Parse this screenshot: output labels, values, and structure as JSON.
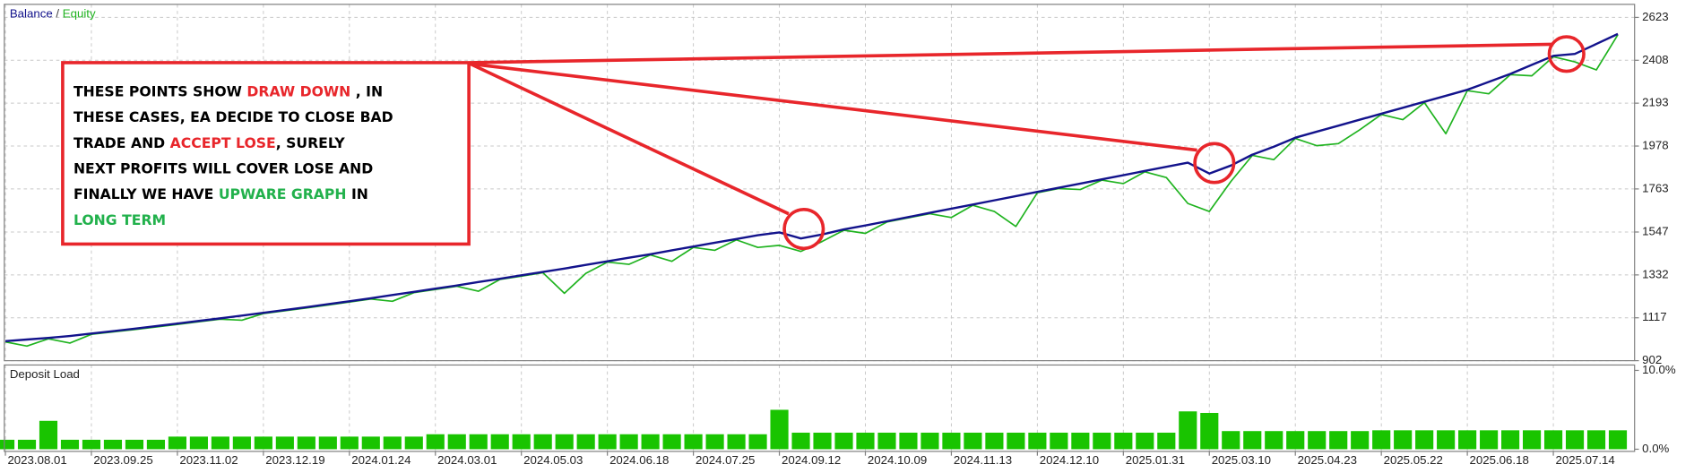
{
  "chart_data": [
    {
      "type": "line",
      "legend_separator": "/",
      "categories": [
        "2023.08.01",
        null,
        null,
        null,
        "2023.09.25",
        null,
        null,
        null,
        "2023.11.02",
        null,
        null,
        null,
        "2023.12.19",
        null,
        null,
        null,
        "2024.01.24",
        null,
        null,
        null,
        "2024.03.01",
        null,
        null,
        null,
        "2024.05.03",
        null,
        null,
        null,
        "2024.06.18",
        null,
        null,
        null,
        "2024.07.25",
        null,
        null,
        null,
        "2024.09.12",
        null,
        null,
        null,
        "2024.10.09",
        null,
        null,
        null,
        "2024.11.13",
        null,
        null,
        null,
        "2024.12.10",
        null,
        null,
        null,
        "2025.01.31",
        null,
        null,
        null,
        "2025.03.10",
        null,
        null,
        null,
        "2025.04.23",
        null,
        null,
        null,
        "2025.05.22",
        null,
        null,
        null,
        "2025.06.18",
        null,
        null,
        null,
        "2025.07.14",
        null,
        null,
        null
      ],
      "series": [
        {
          "name": "Balance",
          "color": "#13138c",
          "values": [
            1000,
            1008,
            1016,
            1026,
            1038,
            1050,
            1062,
            1075,
            1088,
            1101,
            1114,
            1128,
            1142,
            1156,
            1170,
            1185,
            1200,
            1215,
            1231,
            1247,
            1263,
            1279,
            1296,
            1313,
            1330,
            1347,
            1364,
            1382,
            1400,
            1418,
            1436,
            1455,
            1474,
            1493,
            1512,
            1531,
            1545,
            1515,
            1535,
            1560,
            1580,
            1601,
            1622,
            1643,
            1664,
            1685,
            1706,
            1727,
            1748,
            1769,
            1790,
            1811,
            1832,
            1853,
            1874,
            1895,
            1840,
            1880,
            1935,
            1975,
            2020,
            2050,
            2080,
            2110,
            2140,
            2170,
            2200,
            2230,
            2260,
            2300,
            2340,
            2385,
            2430,
            2440,
            2490,
            2540
          ]
        },
        {
          "name": "Equity",
          "color": "#1fb31f",
          "values": [
            996,
            975,
            1012,
            990,
            1034,
            1046,
            1058,
            1071,
            1084,
            1097,
            1110,
            1105,
            1138,
            1152,
            1166,
            1181,
            1196,
            1211,
            1200,
            1243,
            1259,
            1275,
            1250,
            1309,
            1326,
            1343,
            1240,
            1340,
            1396,
            1385,
            1432,
            1400,
            1470,
            1455,
            1508,
            1470,
            1480,
            1450,
            1500,
            1556,
            1540,
            1597,
            1618,
            1639,
            1620,
            1681,
            1650,
            1575,
            1744,
            1765,
            1760,
            1807,
            1790,
            1849,
            1820,
            1690,
            1650,
            1800,
            1931,
            1910,
            2016,
            1980,
            1990,
            2060,
            2136,
            2110,
            2196,
            2040,
            2256,
            2240,
            2336,
            2330,
            2426,
            2400,
            2360,
            2536
          ]
        }
      ],
      "ylim": [
        902,
        2683
      ],
      "yticks": [
        902,
        1117,
        1332,
        1547,
        1763,
        1978,
        2193,
        2408,
        2623
      ],
      "grid": true,
      "annotation": {
        "lines": [
          [
            {
              "text": "THESE POINTS SHOW ",
              "color": "#000000"
            },
            {
              "text": "DRAW DOWN",
              "color": "#e8262b"
            },
            {
              "text": " , IN",
              "color": "#000000"
            }
          ],
          [
            {
              "text": "THESE CASES, EA DECIDE TO CLOSE BAD",
              "color": "#000000"
            }
          ],
          [
            {
              "text": "TRADE AND ",
              "color": "#000000"
            },
            {
              "text": "ACCEPT LOSE",
              "color": "#e8262b"
            },
            {
              "text": ", SURELY",
              "color": "#000000"
            }
          ],
          [
            {
              "text": "NEXT PROFITS WILL COVER LOSE AND",
              "color": "#000000"
            }
          ],
          [
            {
              "text": "FINALLY WE HAVE ",
              "color": "#000000"
            },
            {
              "text": "UPWARE GRAPH",
              "color": "#22b14c"
            },
            {
              "text": " IN",
              "color": "#000000"
            }
          ],
          [
            {
              "text": "LONG TERM",
              "color": "#22b14c"
            }
          ]
        ]
      }
    },
    {
      "type": "bar",
      "title": "Deposit Load",
      "color": "#19c400",
      "values": [
        1.2,
        1.2,
        3.6,
        1.2,
        1.2,
        1.2,
        1.2,
        1.2,
        1.6,
        1.6,
        1.6,
        1.6,
        1.6,
        1.6,
        1.6,
        1.6,
        1.6,
        1.6,
        1.6,
        1.6,
        1.9,
        1.9,
        1.9,
        1.9,
        1.9,
        1.9,
        1.9,
        1.9,
        1.9,
        1.9,
        1.9,
        1.9,
        1.9,
        1.9,
        1.9,
        1.9,
        5.0,
        2.1,
        2.1,
        2.1,
        2.1,
        2.1,
        2.1,
        2.1,
        2.1,
        2.1,
        2.1,
        2.1,
        2.1,
        2.1,
        2.1,
        2.1,
        2.1,
        2.1,
        2.1,
        4.8,
        4.6,
        2.3,
        2.3,
        2.3,
        2.3,
        2.3,
        2.3,
        2.3,
        2.4,
        2.4,
        2.4,
        2.4,
        2.4,
        2.4,
        2.4,
        2.4,
        2.4,
        2.4,
        2.4,
        2.4
      ],
      "ylim": [
        0,
        10
      ],
      "yticks": [
        {
          "value": 0,
          "label": "0.0%"
        },
        {
          "value": 10,
          "label": "10.0%"
        }
      ]
    }
  ]
}
